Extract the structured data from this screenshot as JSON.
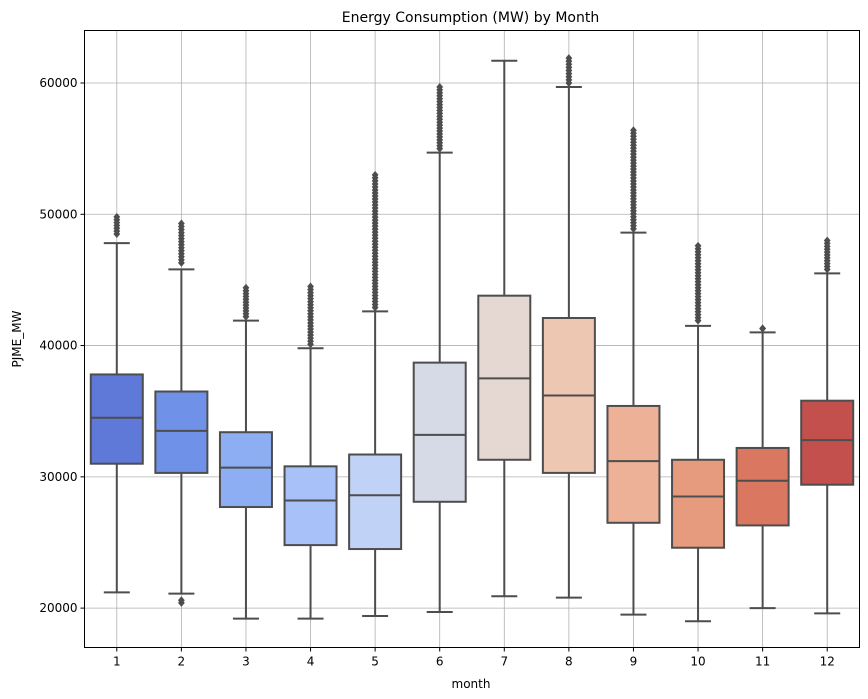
{
  "chart_data": {
    "type": "box",
    "title": "Energy Consumption (MW) by Month",
    "xlabel": "month",
    "ylabel": "PJME_MW",
    "categories": [
      "1",
      "2",
      "3",
      "4",
      "5",
      "6",
      "7",
      "8",
      "9",
      "10",
      "11",
      "12"
    ],
    "ylim": [
      17000,
      64000
    ],
    "yticks": [
      20000,
      30000,
      40000,
      50000,
      60000
    ],
    "ytick_labels": [
      "20000",
      "30000",
      "40000",
      "50000",
      "60000"
    ],
    "grid": true,
    "boxes": [
      {
        "month": "1",
        "whisker_low": 21200,
        "q1": 31000,
        "median": 34500,
        "q3": 37800,
        "whisker_high": 47800,
        "color": "#5f79d9",
        "outliers_low": [],
        "outliers_high_range": [
          48500,
          49800
        ]
      },
      {
        "month": "2",
        "whisker_low": 21100,
        "q1": 30300,
        "median": 33500,
        "q3": 36500,
        "whisker_high": 45800,
        "color": "#6f91e8",
        "outliers_low": [
          20400,
          20600
        ],
        "outliers_high_range": [
          46300,
          49300
        ]
      },
      {
        "month": "3",
        "whisker_low": 19200,
        "q1": 27700,
        "median": 30700,
        "q3": 33400,
        "whisker_high": 41900,
        "color": "#8daef2",
        "outliers_low": [],
        "outliers_high_range": [
          42200,
          44400
        ]
      },
      {
        "month": "4",
        "whisker_low": 19200,
        "q1": 24800,
        "median": 28200,
        "q3": 30800,
        "whisker_high": 39800,
        "color": "#a8c1f8",
        "outliers_low": [],
        "outliers_high_range": [
          40100,
          44500
        ]
      },
      {
        "month": "5",
        "whisker_low": 19400,
        "q1": 24500,
        "median": 28600,
        "q3": 31700,
        "whisker_high": 42600,
        "color": "#c0d2f5",
        "outliers_low": [],
        "outliers_high_range": [
          42900,
          53000
        ]
      },
      {
        "month": "6",
        "whisker_low": 19700,
        "q1": 28100,
        "median": 33200,
        "q3": 38700,
        "whisker_high": 54700,
        "color": "#d5dae6",
        "outliers_low": [],
        "outliers_high_range": [
          55000,
          59700
        ]
      },
      {
        "month": "7",
        "whisker_low": 20900,
        "q1": 31300,
        "median": 37500,
        "q3": 43800,
        "whisker_high": 61700,
        "color": "#e5d8d2",
        "outliers_low": [],
        "outliers_high_range": []
      },
      {
        "month": "8",
        "whisker_low": 20800,
        "q1": 30300,
        "median": 36200,
        "q3": 42100,
        "whisker_high": 59700,
        "color": "#eec7b3",
        "outliers_low": [],
        "outliers_high_range": [
          60000,
          61900
        ]
      },
      {
        "month": "9",
        "whisker_low": 19500,
        "q1": 26500,
        "median": 31200,
        "q3": 35400,
        "whisker_high": 48600,
        "color": "#edb197",
        "outliers_low": [],
        "outliers_high_range": [
          48900,
          56400
        ]
      },
      {
        "month": "10",
        "whisker_low": 19000,
        "q1": 24600,
        "median": 28500,
        "q3": 31300,
        "whisker_high": 41500,
        "color": "#e79b7e",
        "outliers_low": [],
        "outliers_high_range": [
          41900,
          47600
        ]
      },
      {
        "month": "11",
        "whisker_low": 20000,
        "q1": 26300,
        "median": 29700,
        "q3": 32200,
        "whisker_high": 41000,
        "color": "#d97760",
        "outliers_low": [],
        "outliers_high_range": [
          41300,
          41300
        ]
      },
      {
        "month": "12",
        "whisker_low": 19600,
        "q1": 29400,
        "median": 32800,
        "q3": 35800,
        "whisker_high": 45500,
        "color": "#c4504d",
        "outliers_low": [],
        "outliers_high_range": [
          45800,
          48000
        ]
      }
    ],
    "style": {
      "edge_color": "#4d4d4d",
      "grid_color": "#b0b0b0"
    }
  }
}
